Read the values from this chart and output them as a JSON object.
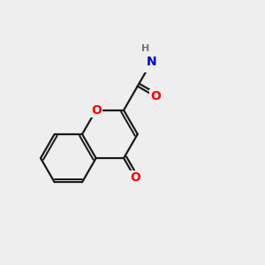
{
  "bg_color": "#eeeeee",
  "bond_color": "#1a1a1a",
  "bond_width": 1.6,
  "atom_colors": {
    "O": "#ff0000",
    "N": "#0000cc",
    "H": "#777777",
    "C": "#1a1a1a"
  },
  "fig_size": [
    3.0,
    3.0
  ],
  "dpi": 100,
  "xlim": [
    -3.5,
    4.2
  ],
  "ylim": [
    -2.8,
    2.8
  ]
}
